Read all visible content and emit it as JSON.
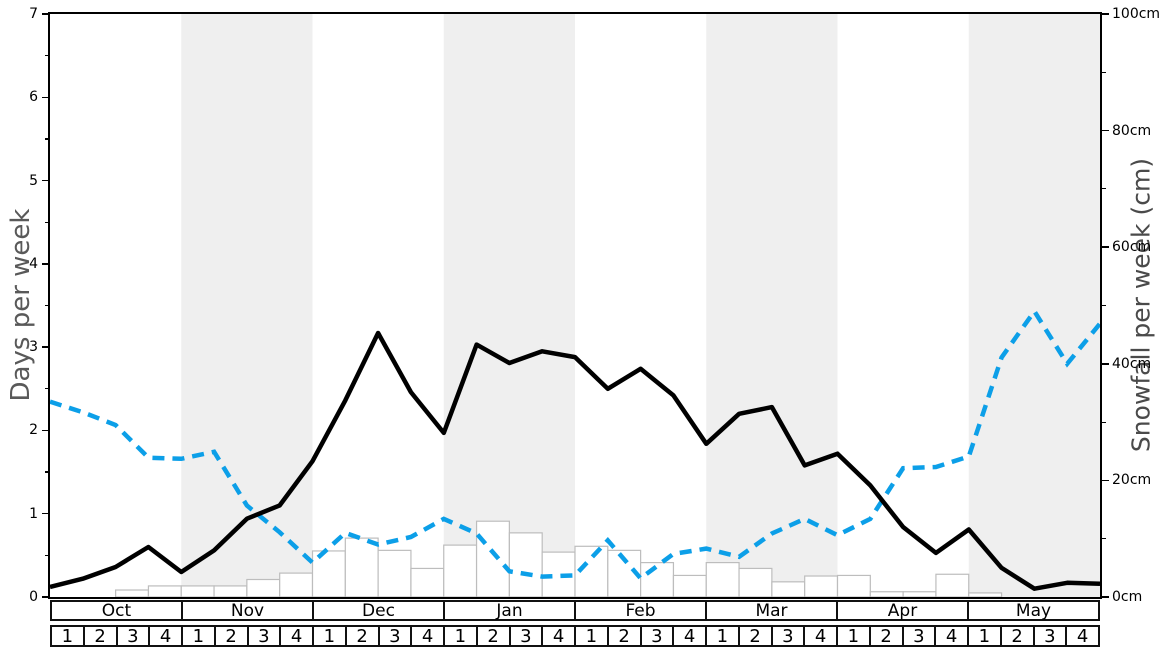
{
  "chart_data": {
    "type": "line",
    "title": "",
    "description": "Weekly snow history chart: black solid line = snow days per week (left axis), blue dashed line = snowfall per week in cm (right axis), white outlined bars = weekly snowfall amounts, alternating shaded month bands.",
    "months": [
      "Oct",
      "Nov",
      "Dec",
      "Jan",
      "Feb",
      "Mar",
      "Apr",
      "May"
    ],
    "week_labels": [
      "1",
      "2",
      "3",
      "4"
    ],
    "shaded_month_indices": [
      1,
      3,
      5,
      7
    ],
    "band_color": "#efefef",
    "left_axis": {
      "label": "Days per week",
      "min": 0,
      "max": 7,
      "major_step": 1,
      "minor_step": 0.5,
      "tick_labels": [
        "0",
        "1",
        "2",
        "3",
        "4",
        "5",
        "6",
        "7"
      ]
    },
    "right_axis": {
      "label": "Snowfall per week (cm)",
      "min": 0,
      "max": 100,
      "major_step": 20,
      "minor_step": 10,
      "tick_labels": [
        "0cm",
        "20cm",
        "40cm",
        "60cm",
        "80cm",
        "100cm"
      ]
    },
    "legend": "none",
    "grid": "off",
    "series": [
      {
        "name": "snow_days_per_week",
        "axis": "left",
        "color": "#000000",
        "line_style": "solid",
        "points_at": "week_boundaries_oct_w1_to_may_w4_end",
        "values": [
          0.12,
          0.22,
          0.36,
          0.6,
          0.3,
          0.56,
          0.94,
          1.1,
          1.63,
          2.36,
          3.17,
          2.46,
          1.97,
          3.03,
          2.81,
          2.95,
          2.88,
          2.5,
          2.74,
          2.42,
          1.84,
          2.2,
          2.28,
          1.58,
          1.72,
          1.34,
          0.84,
          0.53,
          0.81,
          0.35,
          0.1,
          0.17,
          0.16
        ]
      },
      {
        "name": "snowfall_per_week_cm",
        "axis": "right",
        "color": "#0c9fe8",
        "line_style": "dashed",
        "points_at": "week_boundaries_oct_w1_to_may_w4_end",
        "values": [
          33.5,
          31.7,
          29.5,
          23.9,
          23.7,
          24.9,
          15.7,
          11.1,
          5.9,
          11,
          9,
          10.3,
          13.4,
          10.9,
          4.4,
          3.5,
          3.7,
          9.7,
          3.2,
          7.4,
          8.3,
          6.9,
          10.9,
          13.4,
          10.6,
          13.4,
          22.1,
          22.3,
          24.1,
          41.1,
          49,
          40,
          46.9
        ]
      }
    ],
    "bars": {
      "name": "weekly_snowfall_bars",
      "axis": "right",
      "unit": "cm",
      "fill": "#ffffff",
      "stroke": "#bdbdbd",
      "values": [
        0,
        0,
        1.2,
        1.9,
        1.9,
        1.9,
        3,
        4.1,
        7.9,
        10.1,
        8,
        4.9,
        8.9,
        13,
        11,
        7.7,
        8.7,
        8,
        5.9,
        3.7,
        5.9,
        4.9,
        2.6,
        3.6,
        3.7,
        0.9,
        0.9,
        3.9,
        0.7,
        0,
        0,
        0
      ]
    }
  }
}
